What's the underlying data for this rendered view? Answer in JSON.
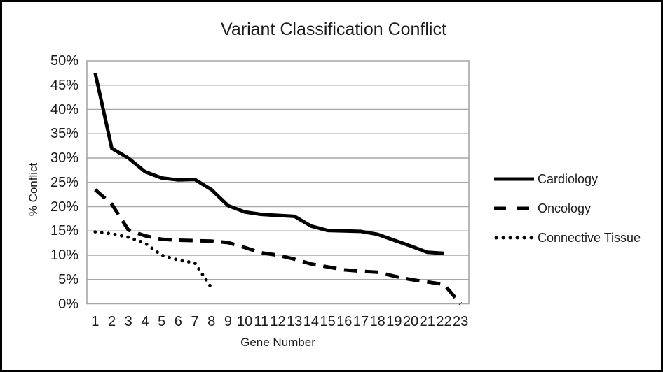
{
  "chart_data": {
    "type": "line",
    "title": "Variant Classification Conflict",
    "xlabel": "Gene Number",
    "ylabel": "% Conflict",
    "ylim": [
      0,
      50
    ],
    "ytick_step": 5,
    "ytick_labels": [
      "0%",
      "5%",
      "10%",
      "15%",
      "20%",
      "25%",
      "30%",
      "35%",
      "40%",
      "45%",
      "50%"
    ],
    "categories": [
      "1",
      "2",
      "3",
      "4",
      "5",
      "6",
      "7",
      "8",
      "9",
      "10",
      "11",
      "12",
      "13",
      "14",
      "15",
      "16",
      "17",
      "18",
      "19",
      "20",
      "21",
      "22",
      "23"
    ],
    "grid": "horizontal",
    "gridline_color": "#A6A6A6",
    "legend_position": "right",
    "series": [
      {
        "name": "Cardiology",
        "line_style": "solid",
        "color": "#000000",
        "values": [
          47.5,
          32,
          30,
          27.2,
          25.9,
          25.5,
          25.6,
          23.5,
          20.2,
          18.9,
          18.4,
          18.2,
          18,
          16,
          15.1,
          15,
          14.9,
          14.3,
          13.1,
          11.9,
          10.6,
          10.4
        ]
      },
      {
        "name": "Oncology",
        "line_style": "dashed",
        "color": "#000000",
        "values": [
          23.5,
          20.5,
          15.2,
          14,
          13.3,
          13.1,
          13,
          12.9,
          12.6,
          11.6,
          10.5,
          10,
          9.2,
          8.2,
          7.6,
          7,
          6.7,
          6.5,
          5.7,
          5,
          4.5,
          4,
          0
        ]
      },
      {
        "name": "Connective Tissue",
        "line_style": "dotted",
        "color": "#000000",
        "values": [
          14.8,
          14.4,
          13.7,
          12.5,
          10,
          9,
          8.4,
          3.3
        ]
      }
    ]
  }
}
